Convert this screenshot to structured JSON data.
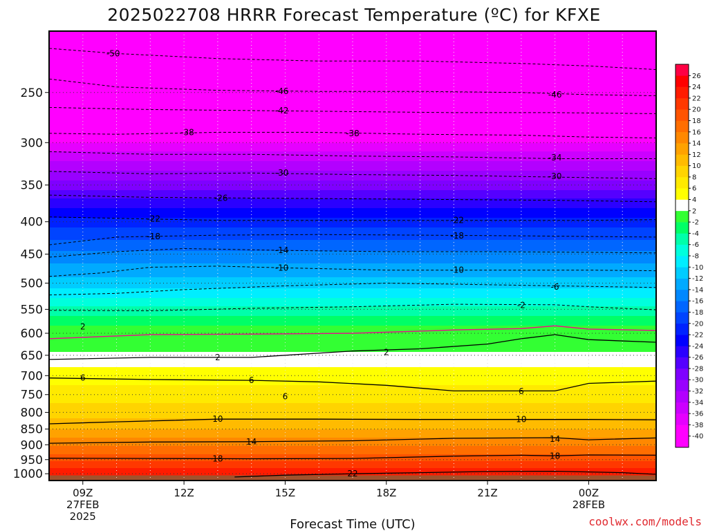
{
  "chart_data": {
    "type": "heatmap",
    "title": "2025022708 HRRR Forecast Temperature (ºC) for KFXE",
    "xlabel": "Forecast Time (UTC)",
    "ylabel": "",
    "ylog": true,
    "y_reversed": true,
    "ylim": [
      1025,
      200
    ],
    "y_ticks": [
      250,
      300,
      350,
      400,
      450,
      500,
      550,
      600,
      650,
      700,
      750,
      800,
      850,
      900,
      950,
      1000
    ],
    "x_range_hours": [
      8,
      26
    ],
    "x_ticks": [
      {
        "hour": 9,
        "lines": [
          "09Z",
          "27FEB",
          "2025"
        ]
      },
      {
        "hour": 12,
        "lines": [
          "12Z"
        ]
      },
      {
        "hour": 15,
        "lines": [
          "15Z"
        ]
      },
      {
        "hour": 18,
        "lines": [
          "18Z"
        ]
      },
      {
        "hour": 21,
        "lines": [
          "21Z"
        ]
      },
      {
        "hour": 24,
        "lines": [
          "00Z",
          "28FEB"
        ]
      }
    ],
    "colorbar": {
      "levels": [
        -42,
        -40,
        -38,
        -36,
        -34,
        -32,
        -30,
        -28,
        -26,
        -24,
        -22,
        -20,
        -18,
        -16,
        -14,
        -12,
        -10,
        -8,
        -6,
        -4,
        -2,
        2,
        4,
        6,
        8,
        10,
        12,
        14,
        16,
        18,
        20,
        22,
        24,
        26,
        28
      ],
      "colors": [
        "#ff00ff",
        "#ff00ff",
        "#e600ff",
        "#cc00ff",
        "#b300ff",
        "#9900ff",
        "#7f00ff",
        "#5500ff",
        "#2b00ff",
        "#0000ff",
        "#0022ff",
        "#0044ff",
        "#0066ff",
        "#0088ff",
        "#00aaff",
        "#00ccff",
        "#00eeff",
        "#00ffdd",
        "#00ffaa",
        "#00ff66",
        "#33ff33",
        "#ffffff",
        "#ffff00",
        "#ffea00",
        "#ffd400",
        "#ffbb00",
        "#ffa200",
        "#ff8800",
        "#ff6e00",
        "#ff5400",
        "#ff3800",
        "#ff1c00",
        "#ff0000",
        "#ff0044",
        "#ff0088"
      ],
      "tick_labels": [
        "26",
        "24",
        "22",
        "20",
        "18",
        "16",
        "14",
        "12",
        "10",
        "8",
        "6",
        "4",
        "2",
        "-2",
        "-4",
        "-6",
        "-8",
        "-10",
        "-12",
        "-14",
        "-16",
        "-18",
        "-20",
        "-22",
        "-24",
        "-26",
        "-28",
        "-30",
        "-32",
        "-34",
        "-36",
        "-38",
        "-40"
      ]
    },
    "ground_color": "#a0522d",
    "temperature_profile": {
      "pressure": [
        1000,
        950,
        900,
        850,
        800,
        750,
        700,
        650,
        600,
        550,
        500,
        450,
        400,
        350,
        300,
        250,
        200
      ],
      "temp_c": [
        23.5,
        19.5,
        15.5,
        12,
        9,
        7,
        5,
        2.5,
        -0.5,
        -5.5,
        -11,
        -15.5,
        -21,
        -29,
        -38,
        -46,
        -52
      ]
    },
    "contours": [
      {
        "value": -50,
        "label": "-50",
        "points": [
          [
            8,
            213
          ],
          [
            10,
            217
          ],
          [
            13,
            221
          ],
          [
            16,
            223
          ],
          [
            19,
            223
          ],
          [
            22,
            225
          ],
          [
            24,
            227
          ],
          [
            26,
            230
          ]
        ]
      },
      {
        "value": -46,
        "label": "-46",
        "points": [
          [
            8,
            238
          ],
          [
            10,
            245
          ],
          [
            13,
            248
          ],
          [
            16,
            249
          ],
          [
            19,
            249
          ],
          [
            22,
            250
          ],
          [
            24,
            252
          ],
          [
            26,
            253
          ]
        ]
      },
      {
        "value": -42,
        "label": "-42",
        "points": [
          [
            8,
            264
          ],
          [
            11,
            266
          ],
          [
            14,
            267
          ],
          [
            17,
            268
          ],
          [
            20,
            269
          ],
          [
            23,
            269
          ],
          [
            26,
            270
          ]
        ]
      },
      {
        "value": -38,
        "label": "-38",
        "points": [
          [
            8,
            290
          ],
          [
            10,
            291
          ],
          [
            13,
            289
          ],
          [
            16,
            289
          ],
          [
            19,
            291
          ],
          [
            22,
            292
          ],
          [
            24,
            294
          ],
          [
            26,
            295
          ]
        ]
      },
      {
        "value": -34,
        "label": "-34",
        "points": [
          [
            8,
            310
          ],
          [
            11,
            313
          ],
          [
            14,
            313
          ],
          [
            17,
            315
          ],
          [
            20,
            316
          ],
          [
            23,
            318
          ],
          [
            26,
            318
          ]
        ]
      },
      {
        "value": -30,
        "label": "-30",
        "points": [
          [
            8,
            333
          ],
          [
            11,
            336
          ],
          [
            14,
            335
          ],
          [
            17,
            337
          ],
          [
            20,
            338
          ],
          [
            23,
            340
          ],
          [
            26,
            342
          ]
        ]
      },
      {
        "value": -26,
        "label": "-26",
        "points": [
          [
            8,
            363
          ],
          [
            11,
            366
          ],
          [
            14,
            367
          ],
          [
            17,
            368
          ],
          [
            20,
            369
          ],
          [
            23,
            370
          ],
          [
            26,
            372
          ]
        ]
      },
      {
        "value": -22,
        "label": "-22",
        "points": [
          [
            8,
            393
          ],
          [
            10,
            395
          ],
          [
            13,
            398
          ],
          [
            16,
            398
          ],
          [
            19,
            398
          ],
          [
            22,
            398
          ],
          [
            24,
            398
          ],
          [
            26,
            397
          ]
        ]
      },
      {
        "value": -18,
        "label": "-18",
        "points": [
          [
            8,
            435
          ],
          [
            10,
            423
          ],
          [
            13,
            420
          ],
          [
            16,
            419
          ],
          [
            19,
            420
          ],
          [
            22,
            421
          ],
          [
            24,
            422
          ],
          [
            26,
            423
          ]
        ]
      },
      {
        "value": -14,
        "label": "-14",
        "points": [
          [
            8,
            455
          ],
          [
            10,
            446
          ],
          [
            12,
            441
          ],
          [
            15,
            444
          ],
          [
            18,
            446
          ],
          [
            21,
            446
          ],
          [
            24,
            447
          ],
          [
            26,
            448
          ]
        ]
      },
      {
        "value": -10,
        "label": "-10",
        "points": [
          [
            8,
            488
          ],
          [
            9.5,
            482
          ],
          [
            11,
            472
          ],
          [
            13,
            470
          ],
          [
            15,
            473
          ],
          [
            18,
            477
          ],
          [
            21,
            477
          ],
          [
            24,
            477
          ],
          [
            26,
            478
          ]
        ]
      },
      {
        "value": -6,
        "label": "-6",
        "points": [
          [
            8,
            522
          ],
          [
            10,
            519
          ],
          [
            12,
            512
          ],
          [
            15,
            505
          ],
          [
            18,
            500
          ],
          [
            21,
            503
          ],
          [
            24,
            506
          ],
          [
            26,
            508
          ]
        ]
      },
      {
        "value": -2,
        "label": "-2",
        "points": [
          [
            8,
            552
          ],
          [
            11,
            553
          ],
          [
            14,
            548
          ],
          [
            17,
            545
          ],
          [
            20,
            540
          ],
          [
            23,
            541
          ],
          [
            24,
            545
          ],
          [
            26,
            551
          ]
        ]
      },
      {
        "value": 2,
        "label": "2",
        "points": [
          [
            8,
            660
          ],
          [
            11,
            655
          ],
          [
            14,
            655
          ],
          [
            17,
            640
          ],
          [
            19,
            635
          ],
          [
            21,
            624
          ],
          [
            22,
            612
          ],
          [
            23,
            603
          ],
          [
            24,
            614
          ],
          [
            26,
            620
          ]
        ],
        "labelAt": [
          15.5,
          649
        ]
      },
      {
        "value": 6,
        "label": "6",
        "points": [
          [
            8,
            706
          ],
          [
            11,
            710
          ],
          [
            14,
            712
          ],
          [
            16,
            716
          ],
          [
            18,
            725
          ],
          [
            20,
            740
          ],
          [
            22,
            740
          ],
          [
            23,
            740
          ],
          [
            24,
            720
          ],
          [
            26,
            714
          ]
        ]
      },
      {
        "value": 10,
        "label": "10",
        "points": [
          [
            8,
            834
          ],
          [
            10,
            828
          ],
          [
            13,
            820
          ],
          [
            16,
            820
          ],
          [
            19,
            821
          ],
          [
            22,
            821
          ],
          [
            24,
            821
          ],
          [
            26,
            822
          ]
        ]
      },
      {
        "value": 14,
        "label": "14",
        "points": [
          [
            8,
            895
          ],
          [
            11,
            891
          ],
          [
            14,
            890
          ],
          [
            17,
            887
          ],
          [
            20,
            879
          ],
          [
            23,
            877
          ],
          [
            24,
            884
          ],
          [
            26,
            878
          ]
        ]
      },
      {
        "value": 18,
        "label": "18",
        "points": [
          [
            8,
            945
          ],
          [
            11,
            946
          ],
          [
            14,
            947
          ],
          [
            17,
            946
          ],
          [
            20,
            938
          ],
          [
            22,
            935
          ],
          [
            23,
            937
          ],
          [
            24,
            934
          ],
          [
            26,
            935
          ]
        ]
      },
      {
        "value": 22,
        "label": "22",
        "points": [
          [
            13.5,
            1012
          ],
          [
            15,
            1005
          ],
          [
            17,
            1000
          ],
          [
            19,
            996
          ],
          [
            21,
            992
          ],
          [
            23,
            991
          ],
          [
            25,
            996
          ],
          [
            26,
            1002
          ]
        ]
      }
    ],
    "freezing_line": {
      "points": [
        [
          8,
          612
        ],
        [
          11,
          603
        ],
        [
          14,
          602
        ],
        [
          17,
          600
        ],
        [
          20,
          593
        ],
        [
          22,
          590
        ],
        [
          23,
          584
        ],
        [
          24,
          591
        ],
        [
          26,
          594
        ]
      ]
    },
    "contour_labels": [
      {
        "text": "-50",
        "x": 9.9,
        "p": 217
      },
      {
        "text": "-46",
        "x": 14.9,
        "p": 249
      },
      {
        "text": "-46",
        "x": 23.0,
        "p": 252
      },
      {
        "text": "-42",
        "x": 14.9,
        "p": 267
      },
      {
        "text": "-38",
        "x": 12.1,
        "p": 289
      },
      {
        "text": "-38",
        "x": 17.0,
        "p": 290
      },
      {
        "text": "-34",
        "x": 23.0,
        "p": 317
      },
      {
        "text": "-30",
        "x": 14.9,
        "p": 335
      },
      {
        "text": "-30",
        "x": 23.0,
        "p": 339
      },
      {
        "text": "-26",
        "x": 13.1,
        "p": 367
      },
      {
        "text": "-22",
        "x": 11.1,
        "p": 396
      },
      {
        "text": "-22",
        "x": 20.1,
        "p": 398
      },
      {
        "text": "-18",
        "x": 11.1,
        "p": 422
      },
      {
        "text": "-18",
        "x": 20.1,
        "p": 421
      },
      {
        "text": "-14",
        "x": 14.9,
        "p": 444
      },
      {
        "text": "-10",
        "x": 14.9,
        "p": 473
      },
      {
        "text": "-10",
        "x": 20.1,
        "p": 477
      },
      {
        "text": "-6",
        "x": 23.0,
        "p": 507
      },
      {
        "text": "-2",
        "x": 22.0,
        "p": 542
      },
      {
        "text": "2",
        "x": 9.0,
        "p": 586
      },
      {
        "text": "2",
        "x": 13.0,
        "p": 655
      },
      {
        "text": "2",
        "x": 18.0,
        "p": 643
      },
      {
        "text": "6",
        "x": 9.0,
        "p": 706
      },
      {
        "text": "6",
        "x": 14.0,
        "p": 712
      },
      {
        "text": "6",
        "x": 15.0,
        "p": 755
      },
      {
        "text": "6",
        "x": 22.0,
        "p": 741
      },
      {
        "text": "10",
        "x": 13.0,
        "p": 820
      },
      {
        "text": "10",
        "x": 22.0,
        "p": 821
      },
      {
        "text": "14",
        "x": 14.0,
        "p": 890
      },
      {
        "text": "14",
        "x": 23.0,
        "p": 881
      },
      {
        "text": "18",
        "x": 13.0,
        "p": 947
      },
      {
        "text": "18",
        "x": 23.0,
        "p": 937
      },
      {
        "text": "22",
        "x": 17.0,
        "p": 1000
      }
    ]
  },
  "credit": "coolwx.com/models"
}
